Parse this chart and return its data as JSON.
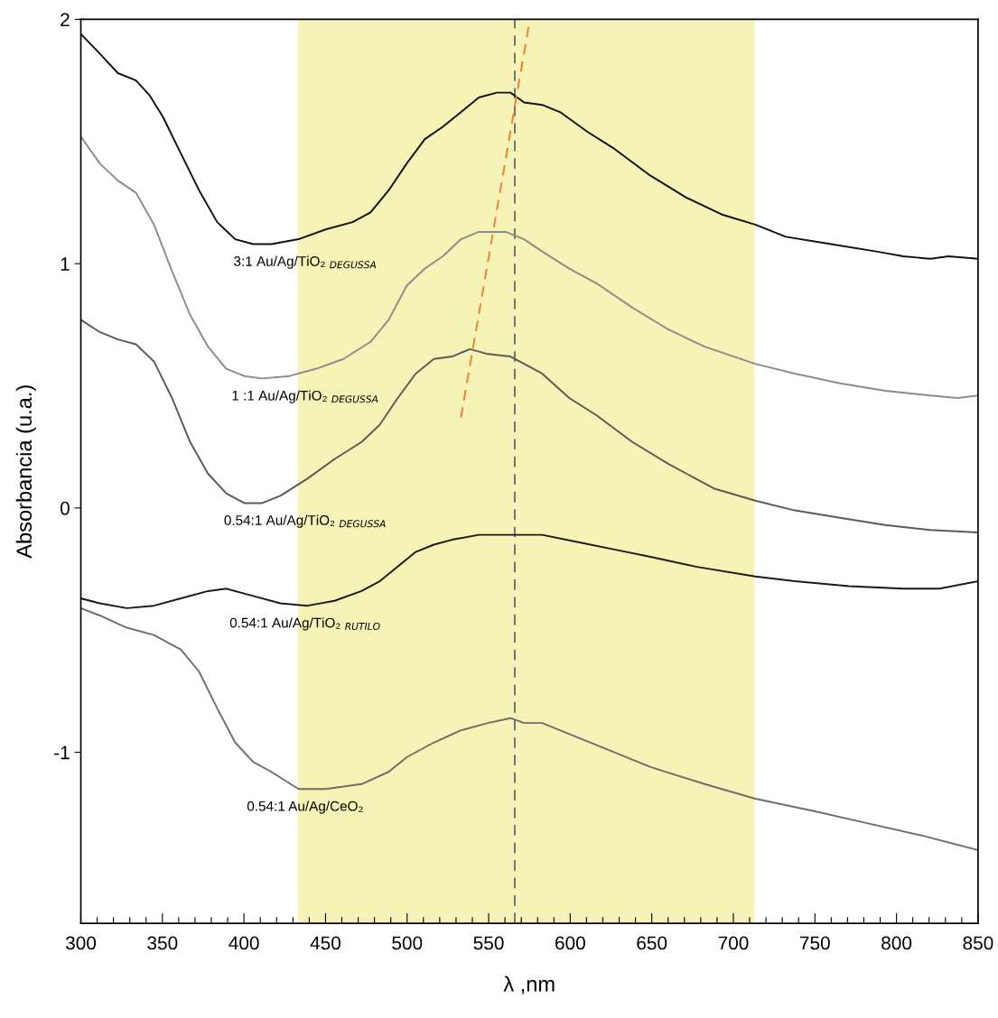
{
  "chart_data": {
    "type": "line",
    "xlabel": "λ ,nm",
    "ylabel": "Absorbancia (u.a.)",
    "xlim": [
      300,
      850
    ],
    "ylim": [
      -1.7,
      2
    ],
    "xticks": [
      300,
      {
        "value": 310,
        "label": null
      },
      {
        "value": 320,
        "label": null
      },
      {
        "value": 330,
        "label": null
      },
      {
        "value": 340,
        "label": null
      },
      350,
      {
        "value": 360,
        "label": null
      },
      {
        "value": 370,
        "label": null
      },
      {
        "value": 380,
        "label": null
      },
      {
        "value": 390,
        "label": null
      },
      400,
      {
        "value": 410,
        "label": null
      },
      {
        "value": 420,
        "label": null
      },
      {
        "value": 430,
        "label": null
      },
      {
        "value": 440,
        "label": null
      },
      450,
      {
        "value": 460,
        "label": null
      },
      {
        "value": 470,
        "label": null
      },
      {
        "value": 480,
        "label": null
      },
      {
        "value": 490,
        "label": null
      },
      500,
      {
        "value": 510,
        "label": null
      },
      {
        "value": 520,
        "label": null
      },
      {
        "value": 530,
        "label": null
      },
      {
        "value": 540,
        "label": null
      },
      550,
      {
        "value": 560,
        "label": null
      },
      {
        "value": 570,
        "label": null
      },
      {
        "value": 580,
        "label": null
      },
      {
        "value": 590,
        "label": null
      },
      600,
      {
        "value": 610,
        "label": null
      },
      {
        "value": 620,
        "label": null
      },
      {
        "value": 630,
        "label": null
      },
      {
        "value": 640,
        "label": null
      },
      650,
      {
        "value": 660,
        "label": null
      },
      {
        "value": 670,
        "label": null
      },
      {
        "value": 680,
        "label": null
      },
      {
        "value": 690,
        "label": null
      },
      700,
      {
        "value": 710,
        "label": null
      },
      {
        "value": 720,
        "label": null
      },
      {
        "value": 730,
        "label": null
      },
      {
        "value": 740,
        "label": null
      },
      750,
      {
        "value": 760,
        "label": null
      },
      {
        "value": 770,
        "label": null
      },
      {
        "value": 780,
        "label": null
      },
      {
        "value": 790,
        "label": null
      },
      800,
      {
        "value": 810,
        "label": null
      },
      {
        "value": 820,
        "label": null
      },
      {
        "value": 830,
        "label": null
      },
      {
        "value": 840,
        "label": null
      },
      850
    ],
    "yticks": [
      -1,
      0,
      1,
      2
    ],
    "grid": false,
    "marker": "none",
    "line_style": "solid",
    "bands": [
      {
        "axis": "x",
        "from": 433,
        "to": 713,
        "color": "#f5f3b5"
      }
    ],
    "ref_lines": [
      {
        "axis": "x",
        "value": 566,
        "color": "#707070",
        "line_style": "dashed"
      }
    ],
    "series": [
      {
        "name": "3:1 Au/Ag/TiO₂ $_{DEGUSSA}$",
        "color": "#111111",
        "x": [
          300,
          311.6,
          322.7,
          333.8,
          342,
          350.4,
          361.4,
          372.5,
          383.6,
          394.6,
          405.7,
          416.8,
          433.4,
          450,
          466.6,
          477.6,
          488.7,
          499.8,
          510.9,
          521.9,
          533,
          544,
          555.1,
          563.4,
          571.7,
          582.8,
          593.9,
          610.5,
          627.1,
          649.2,
          671.3,
          693.5,
          713.4,
          732.2,
          759.9,
          787.6,
          804.2,
          820.8,
          831.8,
          850
        ],
        "values": [
          1.94,
          1.86,
          1.78,
          1.75,
          1.69,
          1.6,
          1.45,
          1.3,
          1.17,
          1.1,
          1.08,
          1.08,
          1.1,
          1.14,
          1.17,
          1.21,
          1.3,
          1.41,
          1.51,
          1.56,
          1.62,
          1.68,
          1.7,
          1.7,
          1.66,
          1.65,
          1.62,
          1.54,
          1.47,
          1.36,
          1.27,
          1.2,
          1.16,
          1.11,
          1.08,
          1.05,
          1.03,
          1.02,
          1.03,
          1.02
        ]
      },
      {
        "name": "1 :1 Au/Ag/TiO₂ $_{DEGUSSA}$",
        "color": "#8c8c8c",
        "x": [
          300,
          311.6,
          322.7,
          333.8,
          344.8,
          355.9,
          367,
          378,
          389.1,
          400.2,
          411.2,
          427.8,
          444.4,
          461,
          477.6,
          488.7,
          499.8,
          510.9,
          521.9,
          533,
          544,
          560.6,
          571.7,
          582.8,
          599.4,
          616,
          638.1,
          660.3,
          682.4,
          713.4,
          737.7,
          765.4,
          793.1,
          820.8,
          837.4,
          850
        ],
        "values": [
          1.52,
          1.41,
          1.34,
          1.29,
          1.16,
          0.97,
          0.79,
          0.66,
          0.57,
          0.54,
          0.53,
          0.54,
          0.57,
          0.61,
          0.68,
          0.77,
          0.91,
          0.98,
          1.03,
          1.1,
          1.13,
          1.13,
          1.1,
          1.05,
          0.98,
          0.92,
          0.82,
          0.73,
          0.66,
          0.59,
          0.55,
          0.51,
          0.48,
          0.46,
          0.45,
          0.46
        ]
      },
      {
        "name": "0.54:1 Au/Ag/TiO₂ $_{DEGUSSA}$",
        "color": "#5a5a5a",
        "x": [
          300,
          311.6,
          322.7,
          333.8,
          344.8,
          355.9,
          367,
          378,
          389.1,
          400.2,
          411.2,
          422.3,
          438.9,
          455.5,
          472.1,
          483.2,
          494.3,
          505.3,
          516.4,
          527.5,
          538.5,
          549.6,
          563.4,
          571.7,
          582.8,
          599.4,
          616,
          638.1,
          660.3,
          688,
          713.4,
          737.7,
          765.4,
          793.1,
          820.8,
          850
        ],
        "values": [
          0.77,
          0.72,
          0.69,
          0.67,
          0.6,
          0.45,
          0.27,
          0.14,
          0.06,
          0.02,
          0.02,
          0.05,
          0.12,
          0.2,
          0.27,
          0.34,
          0.45,
          0.55,
          0.61,
          0.62,
          0.65,
          0.63,
          0.62,
          0.59,
          0.55,
          0.45,
          0.38,
          0.27,
          0.18,
          0.08,
          0.03,
          -0.01,
          -0.04,
          -0.07,
          -0.09,
          -0.1
        ]
      },
      {
        "name": "0.54:1 Au/Ag/TiO₂ $_{RUTILO}$",
        "color": "#1a1a1a",
        "x": [
          300,
          311.6,
          328.2,
          344.8,
          361.4,
          378,
          389.1,
          405.7,
          422.3,
          438.9,
          455.5,
          472.1,
          483.2,
          494.3,
          505.3,
          516.4,
          527.5,
          544,
          563.4,
          582.8,
          604.9,
          627.1,
          649.2,
          676.9,
          713.4,
          737.7,
          770.9,
          804.2,
          826.3,
          850
        ],
        "values": [
          -0.37,
          -0.39,
          -0.41,
          -0.4,
          -0.37,
          -0.34,
          -0.33,
          -0.36,
          -0.39,
          -0.4,
          -0.38,
          -0.34,
          -0.3,
          -0.24,
          -0.18,
          -0.15,
          -0.13,
          -0.11,
          -0.11,
          -0.11,
          -0.14,
          -0.17,
          -0.2,
          -0.24,
          -0.28,
          -0.3,
          -0.32,
          -0.33,
          -0.33,
          -0.3
        ]
      },
      {
        "name": "0.54:1 Au/Ag/CeO₂",
        "color": "#6e6e6e",
        "x": [
          300,
          311.6,
          328.2,
          344.8,
          361.4,
          372.5,
          383.6,
          394.6,
          405.7,
          416.8,
          433.4,
          450,
          472.1,
          488.7,
          499.8,
          516.4,
          533,
          549.6,
          563.4,
          571.7,
          582.8,
          604.9,
          627.1,
          649.2,
          682.4,
          713.4,
          748.8,
          782,
          815.2,
          850
        ],
        "values": [
          -0.41,
          -0.44,
          -0.49,
          -0.52,
          -0.58,
          -0.67,
          -0.82,
          -0.96,
          -1.04,
          -1.08,
          -1.15,
          -1.15,
          -1.13,
          -1.08,
          -1.02,
          -0.96,
          -0.91,
          -0.88,
          -0.86,
          -0.88,
          -0.88,
          -0.94,
          -1.0,
          -1.06,
          -1.13,
          -1.19,
          -1.24,
          -1.29,
          -1.34,
          -1.4
        ]
      },
      {
        "color": "#f07f30",
        "line_style": "dashed",
        "x": [
          533,
          574.5
        ],
        "values": [
          0.37,
          1.97
        ]
      }
    ]
  }
}
